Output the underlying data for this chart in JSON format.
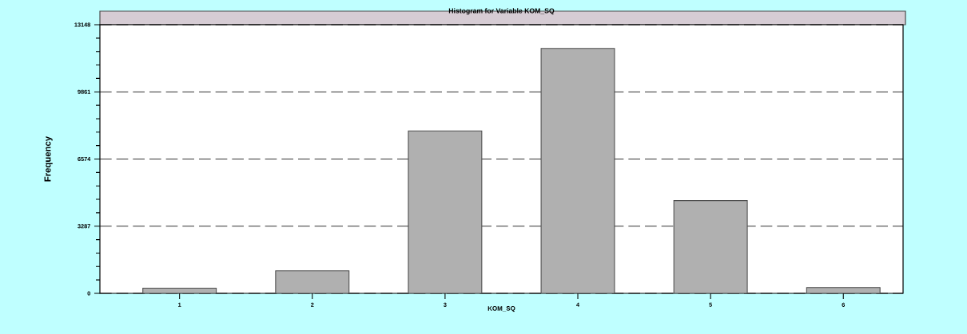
{
  "chart_data": {
    "type": "bar",
    "title": "Histogram for Variable KOM_SQ",
    "xlabel": "KOM_SQ",
    "ylabel": "Frequency",
    "categories": [
      "1",
      "2",
      "3",
      "4",
      "5",
      "6"
    ],
    "values": [
      250,
      1100,
      7950,
      11990,
      4540,
      285
    ],
    "color": "#b0b0b0",
    "ylim": [
      0,
      13148
    ],
    "yticks": [
      0,
      3287,
      6574,
      9861,
      13148
    ],
    "grid": "y"
  }
}
